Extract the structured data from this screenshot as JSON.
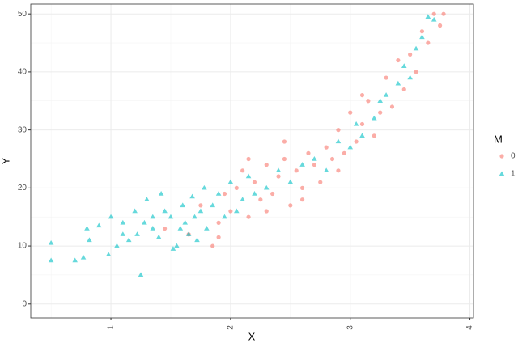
{
  "chart_data": {
    "type": "scatter",
    "x_label": "X",
    "y_label": "Y",
    "legend_title": "M",
    "xlim": [
      0.33,
      4.03
    ],
    "ylim": [
      -2.4,
      51.7
    ],
    "xticks": [
      1,
      2,
      3,
      4
    ],
    "yticks": [
      0,
      10,
      20,
      30,
      40,
      50
    ],
    "grid": true,
    "minor_grid": true,
    "legend": "right",
    "series": [
      {
        "name": "0",
        "color": "#F8766D",
        "marker": "circle",
        "x": [
          1.45,
          1.65,
          1.75,
          1.85,
          1.9,
          1.95,
          2.0,
          2.05,
          2.1,
          2.15,
          2.2,
          2.25,
          2.3,
          2.35,
          2.4,
          2.45,
          2.5,
          2.55,
          2.6,
          2.65,
          2.7,
          2.75,
          2.8,
          2.85,
          2.9,
          2.95,
          3.0,
          3.05,
          3.1,
          3.15,
          3.2,
          3.25,
          3.3,
          3.35,
          3.4,
          3.45,
          3.5,
          3.55,
          3.6,
          3.65,
          3.7,
          3.75,
          3.78,
          2.3,
          2.6,
          2.9,
          3.1,
          2.45,
          2.15,
          1.9
        ],
        "values": [
          13,
          12,
          17,
          10,
          14,
          19,
          16,
          20,
          23,
          15,
          21,
          18,
          24,
          19,
          22,
          25,
          17,
          23,
          20,
          26,
          24,
          21,
          27,
          25,
          30,
          26,
          33,
          28,
          31,
          35,
          29,
          33,
          39,
          34,
          42,
          37,
          43,
          40,
          47,
          45,
          50,
          48,
          50,
          16,
          18,
          23,
          36,
          28,
          25,
          11.5
        ]
      },
      {
        "name": "1",
        "color": "#00BFC4",
        "marker": "triangle",
        "x": [
          0.5,
          0.5,
          0.7,
          0.77,
          0.8,
          0.82,
          0.9,
          0.98,
          1.0,
          1.05,
          1.1,
          1.15,
          1.2,
          1.22,
          1.25,
          1.28,
          1.3,
          1.35,
          1.4,
          1.42,
          1.5,
          1.55,
          1.58,
          1.6,
          1.62,
          1.65,
          1.68,
          1.7,
          1.72,
          1.75,
          1.78,
          1.8,
          1.85,
          1.9,
          1.95,
          2.0,
          2.05,
          2.1,
          2.15,
          2.2,
          2.3,
          2.4,
          2.5,
          2.6,
          2.7,
          2.8,
          2.9,
          3.0,
          3.05,
          3.1,
          3.2,
          3.25,
          3.3,
          3.4,
          3.45,
          3.5,
          3.55,
          3.6,
          3.65,
          3.7,
          1.52,
          1.45,
          1.35,
          1.1
        ],
        "values": [
          10.5,
          7.5,
          7.5,
          8,
          13,
          11,
          13.5,
          8.5,
          15,
          10,
          14,
          11,
          16,
          12,
          5,
          14,
          18,
          13,
          11.5,
          19,
          15,
          10,
          13,
          17,
          14,
          12,
          18.5,
          15,
          11,
          16,
          20,
          13,
          17,
          19,
          15,
          21,
          16,
          18,
          22,
          19,
          20,
          23,
          21,
          24,
          25,
          23,
          28,
          27,
          31,
          29,
          32,
          35,
          36,
          38,
          41,
          39,
          44,
          46,
          49.5,
          49,
          9.5,
          16,
          15,
          12
        ]
      }
    ]
  }
}
